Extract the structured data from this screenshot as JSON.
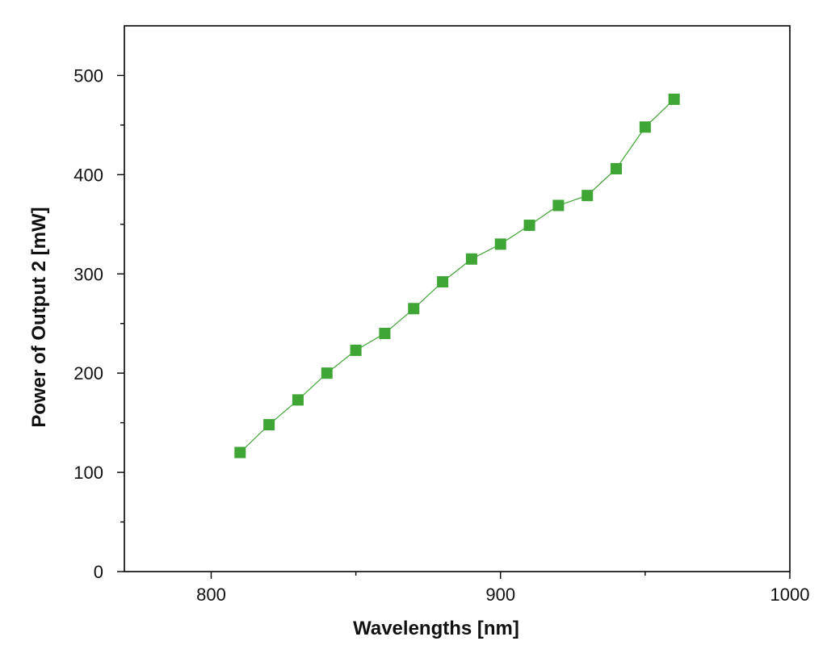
{
  "chart_data": {
    "type": "line",
    "title": "",
    "xlabel": "Wavelengths [nm]",
    "ylabel": "Power of Output 2 [mW]",
    "xlim": [
      770,
      1000
    ],
    "ylim": [
      0,
      550
    ],
    "x_major_ticks": [
      800,
      900,
      1000
    ],
    "x_minor_ticks": [
      850,
      950
    ],
    "y_major_ticks": [
      0,
      100,
      200,
      300,
      400,
      500
    ],
    "y_minor_ticks": [
      50,
      150,
      250,
      350,
      450
    ],
    "x_tick_labels": [
      "800",
      "900",
      "1000"
    ],
    "y_tick_labels": [
      "0",
      "100",
      "200",
      "300",
      "400",
      "500"
    ],
    "grid": false,
    "marker": "square",
    "color": "#3fa535",
    "series": [
      {
        "x": [
          810,
          820,
          830,
          840,
          850,
          860,
          870,
          880,
          890,
          900,
          910,
          920,
          930,
          940,
          950,
          960
        ],
        "y": [
          120,
          148,
          173,
          200,
          223,
          240,
          265,
          292,
          315,
          330,
          349,
          369,
          379,
          406,
          448,
          476
        ]
      }
    ]
  }
}
